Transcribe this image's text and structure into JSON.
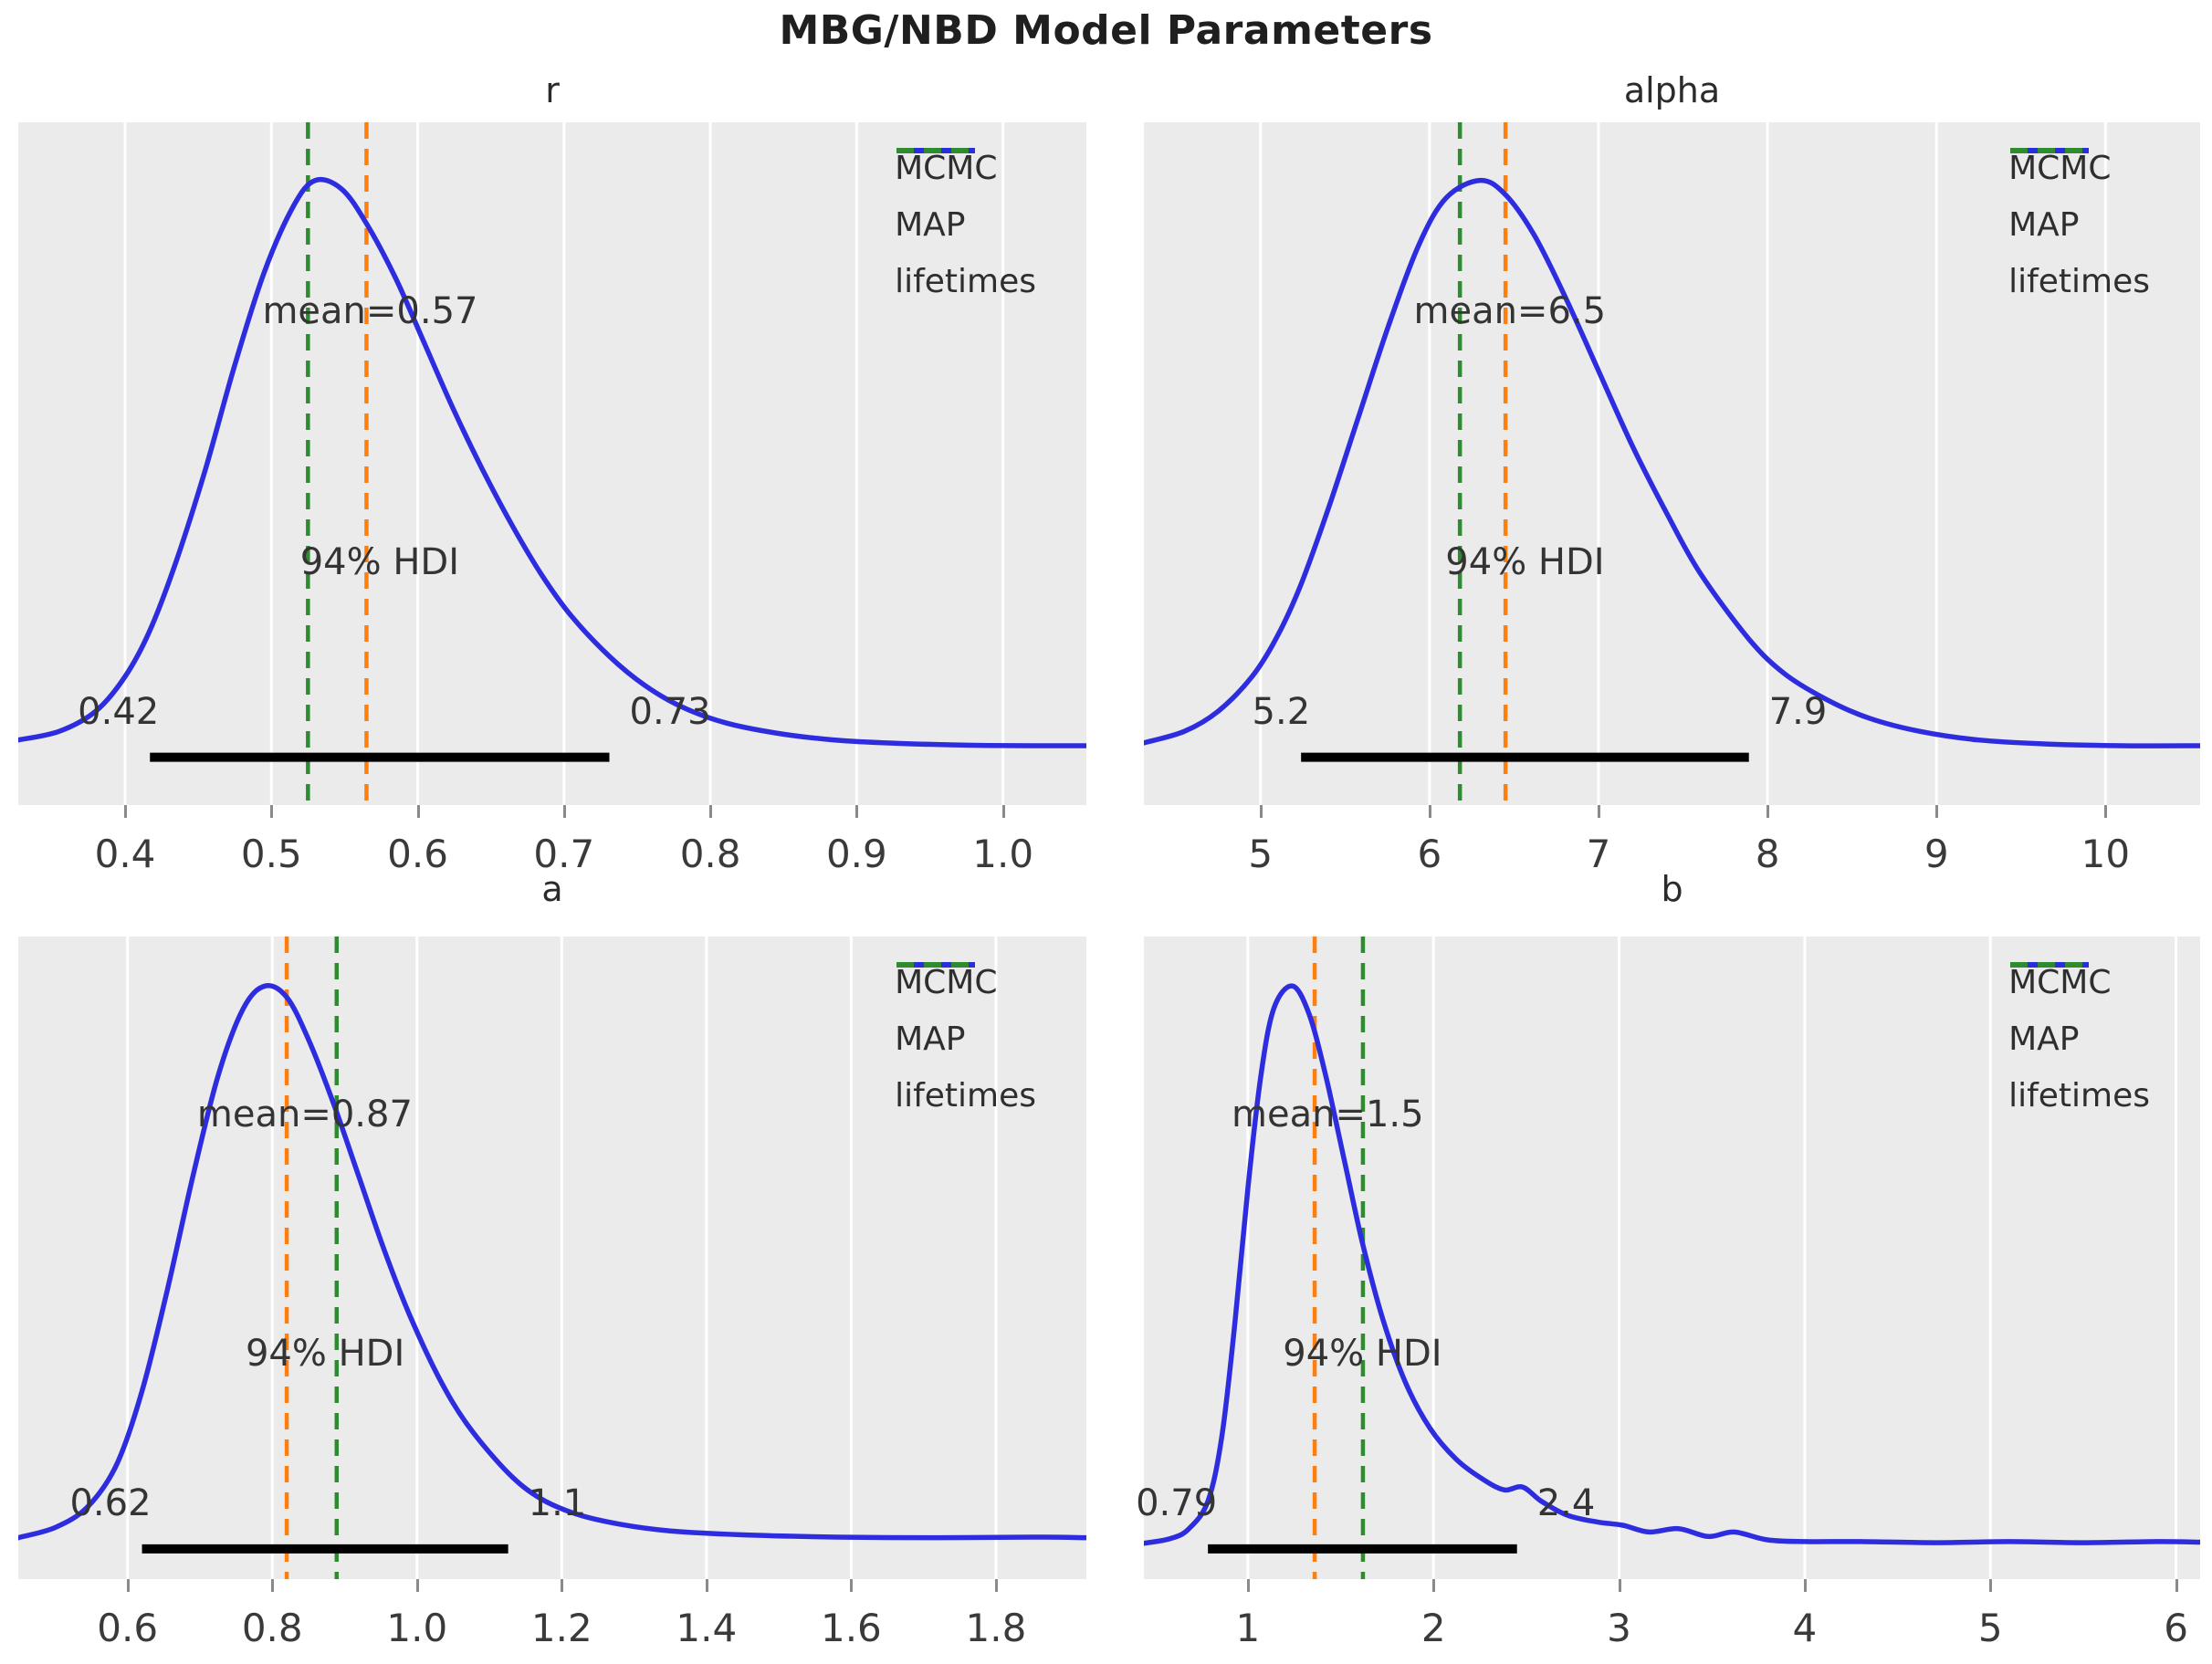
{
  "figure": {
    "title": "MBG/NBD Model Parameters"
  },
  "style": {
    "axes_bg": "#ebebeb",
    "grid_color": "#ffffff",
    "curve_color": "#2d2ddf",
    "map_color": "#ff7f0e",
    "lifetimes_color": "#2f8b2f",
    "hdi_bar_color": "#000000",
    "text_color": "#343434"
  },
  "legend": {
    "entries": [
      {
        "label": "MCMC",
        "color": "#2d2ddf",
        "style": "solid"
      },
      {
        "label": "MAP",
        "color": "#ff7f0e",
        "style": "dashed"
      },
      {
        "label": "lifetimes",
        "color": "#2f8b2f",
        "style": "dashed"
      }
    ]
  },
  "chart_data": [
    {
      "type": "line",
      "title": "r",
      "mean": 0.57,
      "mean_label": "mean=0.57",
      "map_line": 0.565,
      "lifetimes_line": 0.525,
      "hdi": {
        "low": 0.42,
        "high": 0.73,
        "low_label": "0.42",
        "high_label": "0.73",
        "label": "94% HDI",
        "bar_extent": [
          0.417,
          0.731
        ]
      },
      "xlim": [
        0.327,
        1.057
      ],
      "xticks": [
        0.4,
        0.5,
        0.6,
        0.7,
        0.8,
        0.9,
        1.0
      ],
      "xtick_labels": [
        "0.4",
        "0.5",
        "0.6",
        "0.7",
        "0.8",
        "0.9",
        "1.0"
      ],
      "grid": true,
      "legend_position": "top-right",
      "curve": [
        [
          0.327,
          0.03
        ],
        [
          0.355,
          0.045
        ],
        [
          0.38,
          0.08
        ],
        [
          0.4,
          0.14
        ],
        [
          0.417,
          0.22
        ],
        [
          0.435,
          0.34
        ],
        [
          0.455,
          0.5
        ],
        [
          0.475,
          0.68
        ],
        [
          0.495,
          0.84
        ],
        [
          0.515,
          0.955
        ],
        [
          0.53,
          1.0
        ],
        [
          0.548,
          0.985
        ],
        [
          0.565,
          0.925
        ],
        [
          0.585,
          0.83
        ],
        [
          0.605,
          0.715
        ],
        [
          0.625,
          0.6
        ],
        [
          0.645,
          0.495
        ],
        [
          0.665,
          0.4
        ],
        [
          0.685,
          0.315
        ],
        [
          0.705,
          0.245
        ],
        [
          0.731,
          0.175
        ],
        [
          0.755,
          0.125
        ],
        [
          0.78,
          0.088
        ],
        [
          0.81,
          0.06
        ],
        [
          0.845,
          0.042
        ],
        [
          0.885,
          0.03
        ],
        [
          0.93,
          0.024
        ],
        [
          0.975,
          0.021
        ],
        [
          1.02,
          0.02
        ],
        [
          1.057,
          0.02
        ]
      ]
    },
    {
      "type": "line",
      "title": "alpha",
      "mean": 6.5,
      "mean_label": "mean=6.5",
      "map_line": 6.45,
      "lifetimes_line": 6.18,
      "hdi": {
        "low": 5.2,
        "high": 7.9,
        "low_label": "5.2",
        "high_label": "7.9",
        "label": "94% HDI",
        "bar_extent": [
          5.24,
          7.89
        ]
      },
      "xlim": [
        4.31,
        10.56
      ],
      "xticks": [
        5,
        6,
        7,
        8,
        9,
        10
      ],
      "xtick_labels": [
        "5",
        "6",
        "7",
        "8",
        "9",
        "10"
      ],
      "grid": true,
      "legend_position": "top-right",
      "curve": [
        [
          4.31,
          0.025
        ],
        [
          4.55,
          0.045
        ],
        [
          4.75,
          0.08
        ],
        [
          4.95,
          0.14
        ],
        [
          5.1,
          0.21
        ],
        [
          5.24,
          0.3
        ],
        [
          5.4,
          0.43
        ],
        [
          5.58,
          0.59
        ],
        [
          5.76,
          0.75
        ],
        [
          5.94,
          0.89
        ],
        [
          6.1,
          0.97
        ],
        [
          6.3,
          1.0
        ],
        [
          6.45,
          0.975
        ],
        [
          6.62,
          0.905
        ],
        [
          6.8,
          0.8
        ],
        [
          7.0,
          0.67
        ],
        [
          7.2,
          0.54
        ],
        [
          7.4,
          0.425
        ],
        [
          7.6,
          0.32
        ],
        [
          7.89,
          0.205
        ],
        [
          8.1,
          0.145
        ],
        [
          8.35,
          0.1
        ],
        [
          8.6,
          0.068
        ],
        [
          8.9,
          0.045
        ],
        [
          9.25,
          0.03
        ],
        [
          9.65,
          0.023
        ],
        [
          10.1,
          0.02
        ],
        [
          10.56,
          0.02
        ]
      ]
    },
    {
      "type": "line",
      "title": "a",
      "mean": 0.87,
      "mean_label": "mean=0.87",
      "map_line": 0.82,
      "lifetimes_line": 0.889,
      "hdi": {
        "low": 0.62,
        "high": 1.1,
        "low_label": "0.62",
        "high_label": "1.1",
        "label": "94% HDI",
        "bar_extent": [
          0.62,
          1.126
        ]
      },
      "xlim": [
        0.449,
        1.925
      ],
      "xticks": [
        0.6,
        0.8,
        1.0,
        1.2,
        1.4,
        1.6,
        1.8
      ],
      "xtick_labels": [
        "0.6",
        "0.8",
        "1.0",
        "1.2",
        "1.4",
        "1.6",
        "1.8"
      ],
      "grid": true,
      "legend_position": "top-right",
      "curve": [
        [
          0.449,
          0.02
        ],
        [
          0.5,
          0.038
        ],
        [
          0.545,
          0.075
        ],
        [
          0.585,
          0.15
        ],
        [
          0.62,
          0.28
        ],
        [
          0.655,
          0.46
        ],
        [
          0.69,
          0.66
        ],
        [
          0.725,
          0.84
        ],
        [
          0.76,
          0.96
        ],
        [
          0.79,
          1.0
        ],
        [
          0.82,
          0.98
        ],
        [
          0.85,
          0.905
        ],
        [
          0.885,
          0.79
        ],
        [
          0.92,
          0.66
        ],
        [
          0.955,
          0.53
        ],
        [
          0.99,
          0.415
        ],
        [
          1.03,
          0.305
        ],
        [
          1.07,
          0.22
        ],
        [
          1.126,
          0.135
        ],
        [
          1.17,
          0.09
        ],
        [
          1.22,
          0.062
        ],
        [
          1.28,
          0.044
        ],
        [
          1.35,
          0.032
        ],
        [
          1.45,
          0.025
        ],
        [
          1.58,
          0.021
        ],
        [
          1.72,
          0.02
        ],
        [
          1.85,
          0.021
        ],
        [
          1.925,
          0.02
        ]
      ]
    },
    {
      "type": "line",
      "title": "b",
      "mean": 1.5,
      "mean_label": "mean=1.5",
      "map_line": 1.36,
      "lifetimes_line": 1.62,
      "hdi": {
        "low": 0.79,
        "high": 2.4,
        "low_label": "0.79",
        "high_label": "2.4",
        "label": "94% HDI",
        "bar_extent": [
          0.785,
          2.45
        ]
      },
      "xlim": [
        0.44,
        6.13
      ],
      "xticks": [
        1,
        2,
        3,
        4,
        5,
        6
      ],
      "xtick_labels": [
        "1",
        "2",
        "3",
        "4",
        "5",
        "6"
      ],
      "grid": true,
      "legend_position": "top-right",
      "curve": [
        [
          0.44,
          0.01
        ],
        [
          0.58,
          0.018
        ],
        [
          0.68,
          0.035
        ],
        [
          0.785,
          0.085
        ],
        [
          0.86,
          0.2
        ],
        [
          0.93,
          0.4
        ],
        [
          1.0,
          0.64
        ],
        [
          1.07,
          0.84
        ],
        [
          1.14,
          0.96
        ],
        [
          1.24,
          1.0
        ],
        [
          1.33,
          0.95
        ],
        [
          1.42,
          0.84
        ],
        [
          1.52,
          0.69
        ],
        [
          1.62,
          0.54
        ],
        [
          1.73,
          0.405
        ],
        [
          1.85,
          0.295
        ],
        [
          1.98,
          0.215
        ],
        [
          2.12,
          0.16
        ],
        [
          2.26,
          0.125
        ],
        [
          2.38,
          0.105
        ],
        [
          2.48,
          0.11
        ],
        [
          2.58,
          0.085
        ],
        [
          2.72,
          0.06
        ],
        [
          2.88,
          0.048
        ],
        [
          3.02,
          0.042
        ],
        [
          3.16,
          0.03
        ],
        [
          3.32,
          0.036
        ],
        [
          3.48,
          0.022
        ],
        [
          3.62,
          0.03
        ],
        [
          3.8,
          0.016
        ],
        [
          4.0,
          0.013
        ],
        [
          4.3,
          0.013
        ],
        [
          4.7,
          0.011
        ],
        [
          5.1,
          0.013
        ],
        [
          5.5,
          0.011
        ],
        [
          5.9,
          0.013
        ],
        [
          6.13,
          0.012
        ]
      ]
    }
  ]
}
